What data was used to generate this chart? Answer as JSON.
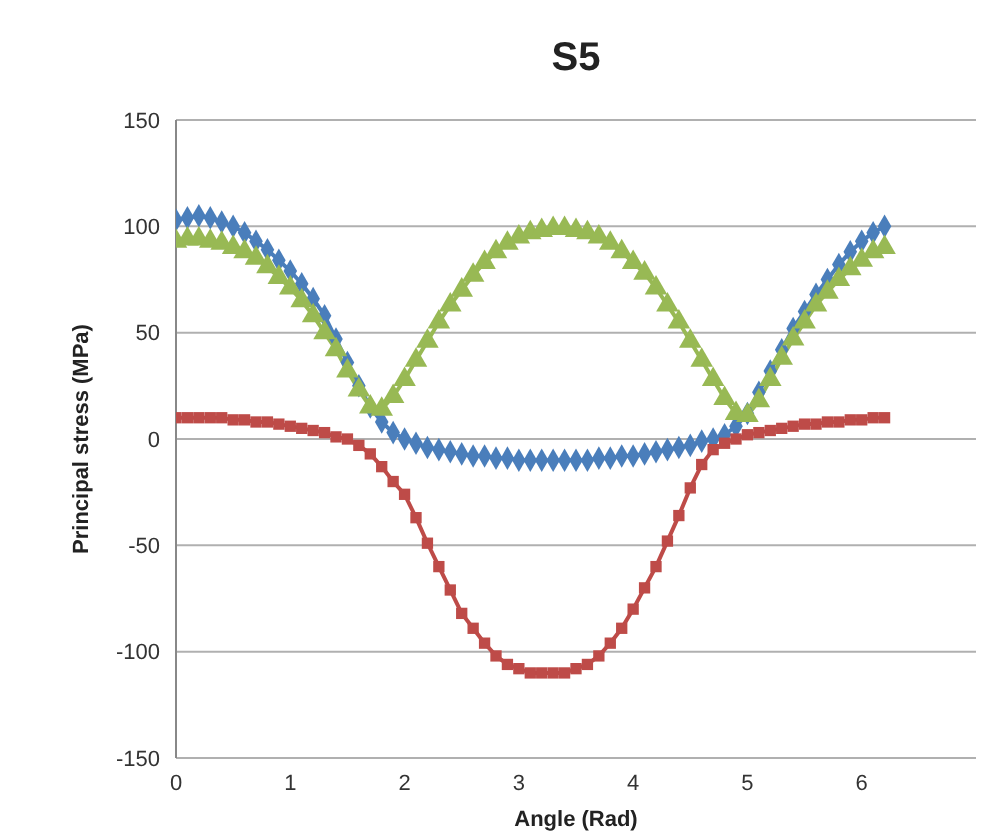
{
  "chart_data": {
    "type": "line",
    "title": "S5",
    "xlabel": "Angle (Rad)",
    "ylabel": "Principal stress (MPa)",
    "x": [
      0,
      0.1,
      0.2,
      0.3,
      0.4,
      0.5,
      0.6,
      0.7,
      0.8,
      0.9,
      1.0,
      1.1,
      1.2,
      1.3,
      1.4,
      1.5,
      1.6,
      1.7,
      1.8,
      1.9,
      2.0,
      2.1,
      2.2,
      2.3,
      2.4,
      2.5,
      2.6,
      2.7,
      2.8,
      2.9,
      3.0,
      3.1,
      3.2,
      3.3,
      3.4,
      3.5,
      3.6,
      3.7,
      3.8,
      3.9,
      4.0,
      4.1,
      4.2,
      4.3,
      4.4,
      4.5,
      4.6,
      4.7,
      4.8,
      4.9,
      5.0,
      5.1,
      5.2,
      5.3,
      5.4,
      5.5,
      5.6,
      5.7,
      5.8,
      5.9,
      6.0,
      6.1,
      6.2
    ],
    "series": [
      {
        "color": "#4a7ebb",
        "marker": "diamond",
        "values": [
          103,
          104,
          105,
          104,
          102,
          100,
          97,
          93,
          89,
          84,
          79,
          73,
          66,
          58,
          47,
          36,
          25,
          15,
          8,
          3,
          0,
          -2,
          -4,
          -5,
          -6,
          -7,
          -8,
          -8,
          -9,
          -9,
          -10,
          -10,
          -10,
          -10,
          -10,
          -10,
          -10,
          -9,
          -9,
          -8,
          -8,
          -7,
          -6,
          -5,
          -4,
          -3,
          -1,
          0,
          2,
          6,
          12,
          22,
          32,
          42,
          52,
          60,
          68,
          75,
          82,
          88,
          93,
          97,
          100
        ]
      },
      {
        "color": "#be4b48",
        "marker": "square",
        "values": [
          10,
          10,
          10,
          10,
          10,
          9,
          9,
          8,
          8,
          7,
          6,
          5,
          4,
          3,
          1,
          0,
          -3,
          -7,
          -13,
          -20,
          -26,
          -37,
          -49,
          -60,
          -71,
          -82,
          -89,
          -96,
          -102,
          -106,
          -108,
          -110,
          -110,
          -110,
          -110,
          -108,
          -106,
          -102,
          -96,
          -89,
          -80,
          -70,
          -60,
          -48,
          -36,
          -23,
          -12,
          -5,
          -2,
          0,
          2,
          3,
          4,
          5,
          6,
          7,
          7,
          8,
          8,
          9,
          9,
          10,
          10
        ]
      },
      {
        "color": "#98b954",
        "marker": "triangle",
        "values": [
          93,
          94,
          94,
          93,
          92,
          90,
          88,
          85,
          81,
          76,
          71,
          65,
          58,
          50,
          42,
          32,
          23,
          15,
          14,
          20,
          28,
          37,
          46,
          55,
          63,
          70,
          77,
          83,
          88,
          92,
          95,
          97,
          98,
          99,
          99,
          98,
          97,
          95,
          92,
          88,
          83,
          78,
          71,
          63,
          55,
          46,
          37,
          28,
          19,
          12,
          11,
          18,
          28,
          38,
          47,
          55,
          63,
          69,
          75,
          80,
          84,
          88,
          90
        ]
      }
    ],
    "xlim": [
      0,
      7
    ],
    "xticks": [
      0,
      1,
      2,
      3,
      4,
      5,
      6
    ],
    "ylim": [
      -150,
      150
    ],
    "yticks": [
      -150,
      -100,
      -50,
      0,
      50,
      100,
      150
    ],
    "grid": "y",
    "legend": false
  }
}
